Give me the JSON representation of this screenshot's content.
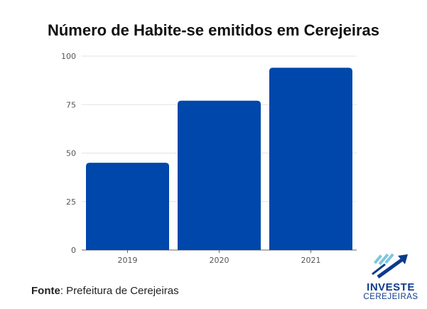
{
  "chart_data": {
    "type": "bar",
    "title": "Número de Habite-se emitidos em Cerejeiras",
    "categories": [
      "2019",
      "2020",
      "2021"
    ],
    "values": [
      45,
      77,
      94
    ],
    "ylim": [
      0,
      100
    ],
    "yticks": [
      0,
      25,
      50,
      75,
      100
    ],
    "xlabel": "",
    "ylabel": "",
    "grid": true,
    "bar_color": "#0047ab"
  },
  "source": {
    "label": "Fonte",
    "text": ": Prefeitura de Cerejeiras"
  },
  "logo": {
    "line1": "INVESTE",
    "line2": "CEREJEIRAS",
    "colors": {
      "primary": "#0d3a8c",
      "accent": "#5fb8d6"
    }
  }
}
